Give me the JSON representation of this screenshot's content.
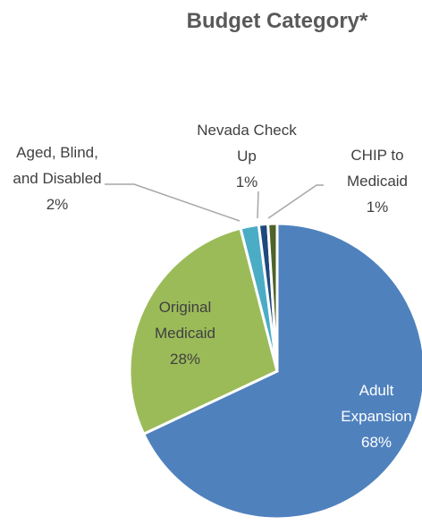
{
  "chart_data": {
    "type": "pie",
    "title": "Budget Category*",
    "categories": [
      "Adult Expansion",
      "Original Medicaid",
      "Aged, Blind, and Disabled",
      "Nevada Check Up",
      "CHIP to Medicaid"
    ],
    "values": [
      68,
      28,
      2,
      1,
      1
    ],
    "value_labels": [
      "68%",
      "28%",
      "2%",
      "1%",
      "1%"
    ],
    "colors": [
      "#4f81bd",
      "#9bbb59",
      "#4bacc6",
      "#1f497d",
      "#4f6228"
    ]
  }
}
